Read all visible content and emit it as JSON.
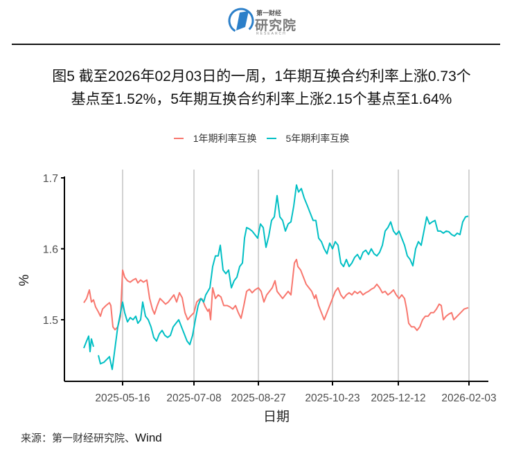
{
  "header": {
    "logo": {
      "small_text": "第一财经",
      "big_text": "研究院",
      "english_text": "RESEARCH",
      "emblem_color": "#2b7fc9"
    },
    "title_line1": "图5  截至2026年02月03日的一周，1年期互换合约利率上涨0.73个",
    "title_line2": "基点至1.52%，5年期互换合约利率上涨2.15个基点至1.64%"
  },
  "legend": {
    "items": [
      {
        "label": "1年期利率互换",
        "color": "#f8766d"
      },
      {
        "label": "5年期利率互换",
        "color": "#00bfc4"
      }
    ]
  },
  "footer": {
    "source_label": "来源：第一财经研究院、",
    "source_wind": "Wind"
  },
  "chart_data": {
    "type": "line",
    "title": "截至2026年02月03日的一周，1年期互换合约利率上涨0.73个基点至1.52%，5年期互换合约利率上涨2.15个基点至1.64%",
    "xlabel": "日期",
    "ylabel": "%",
    "x_ticks": [
      "2025-05-16",
      "2025-07-08",
      "2025-08-27",
      "2025-10-23",
      "2025-12-12",
      "2026-02-03"
    ],
    "y_ticks": [
      1.5,
      1.6,
      1.7
    ],
    "ylim": [
      1.41,
      1.7
    ],
    "grid": "vertical major gridlines at x ticks",
    "legend_position": "top",
    "series": [
      {
        "name": "1年期利率互换",
        "color": "#f8766d",
        "points": [
          [
            121,
            1.524
          ],
          [
            125,
            1.53
          ],
          [
            129,
            1.542
          ],
          [
            132,
            1.525
          ],
          [
            135,
            1.528
          ],
          [
            138,
            1.518
          ],
          [
            142,
            1.511
          ],
          [
            145,
            1.505
          ],
          [
            148,
            1.515
          ],
          [
            153,
            1.52
          ],
          [
            158,
            1.524
          ],
          [
            160,
            1.52
          ],
          [
            163,
            1.49
          ],
          [
            166,
            1.486
          ],
          [
            170,
            1.49
          ],
          [
            174,
            1.505
          ],
          [
            177,
            1.57
          ],
          [
            180,
            1.56
          ],
          [
            184,
            1.555
          ],
          [
            188,
            1.553
          ],
          [
            192,
            1.556
          ],
          [
            196,
            1.558
          ],
          [
            199,
            1.552
          ],
          [
            203,
            1.556
          ],
          [
            207,
            1.553
          ],
          [
            212,
            1.556
          ],
          [
            216,
            1.53
          ],
          [
            220,
            1.515
          ],
          [
            223,
            1.508
          ],
          [
            227,
            1.52
          ],
          [
            231,
            1.53
          ],
          [
            235,
            1.526
          ],
          [
            239,
            1.522
          ],
          [
            243,
            1.525
          ],
          [
            247,
            1.53
          ],
          [
            251,
            1.535
          ],
          [
            255,
            1.525
          ],
          [
            259,
            1.538
          ],
          [
            263,
            1.531
          ],
          [
            267,
            1.51
          ],
          [
            271,
            1.5
          ],
          [
            275,
            1.505
          ],
          [
            280,
            1.51
          ],
          [
            284,
            1.525
          ],
          [
            288,
            1.529
          ],
          [
            292,
            1.529
          ],
          [
            296,
            1.519
          ],
          [
            300,
            1.512
          ],
          [
            302,
            1.515
          ],
          [
            304,
            1.5
          ],
          [
            307,
            1.545
          ],
          [
            311,
            1.53
          ],
          [
            315,
            1.535
          ],
          [
            319,
            1.532
          ],
          [
            323,
            1.52
          ],
          [
            328,
            1.52
          ],
          [
            332,
            1.518
          ],
          [
            336,
            1.515
          ],
          [
            340,
            1.52
          ],
          [
            344,
            1.51
          ],
          [
            348,
            1.502
          ],
          [
            352,
            1.52
          ],
          [
            356,
            1.54
          ],
          [
            360,
            1.543
          ],
          [
            364,
            1.538
          ],
          [
            368,
            1.542
          ],
          [
            373,
            1.545
          ],
          [
            377,
            1.54
          ],
          [
            381,
            1.525
          ],
          [
            385,
            1.535
          ],
          [
            389,
            1.54
          ],
          [
            393,
            1.545
          ],
          [
            397,
            1.555
          ],
          [
            400,
            1.54
          ],
          [
            404,
            1.535
          ],
          [
            408,
            1.53
          ],
          [
            412,
            1.535
          ],
          [
            416,
            1.54
          ],
          [
            420,
            1.535
          ],
          [
            425,
            1.58
          ],
          [
            428,
            1.585
          ],
          [
            430,
            1.575
          ],
          [
            434,
            1.57
          ],
          [
            438,
            1.56
          ],
          [
            442,
            1.55
          ],
          [
            446,
            1.545
          ],
          [
            450,
            1.54
          ],
          [
            454,
            1.53
          ],
          [
            456,
            1.535
          ],
          [
            460,
            1.52
          ],
          [
            464,
            1.51
          ],
          [
            468,
            1.5
          ],
          [
            472,
            1.51
          ],
          [
            476,
            1.52
          ],
          [
            480,
            1.53
          ],
          [
            484,
            1.54
          ],
          [
            488,
            1.545
          ],
          [
            492,
            1.535
          ],
          [
            496,
            1.53
          ],
          [
            500,
            1.535
          ],
          [
            504,
            1.538
          ],
          [
            508,
            1.535
          ],
          [
            512,
            1.54
          ],
          [
            516,
            1.537
          ],
          [
            520,
            1.54
          ],
          [
            524,
            1.535
          ],
          [
            528,
            1.538
          ],
          [
            532,
            1.54
          ],
          [
            536,
            1.543
          ],
          [
            540,
            1.545
          ],
          [
            544,
            1.55
          ],
          [
            548,
            1.545
          ],
          [
            552,
            1.538
          ],
          [
            556,
            1.54
          ],
          [
            560,
            1.535
          ],
          [
            564,
            1.538
          ],
          [
            568,
            1.542
          ],
          [
            572,
            1.535
          ],
          [
            576,
            1.53
          ],
          [
            580,
            1.535
          ],
          [
            584,
            1.53
          ],
          [
            587,
            1.515
          ],
          [
            590,
            1.495
          ],
          [
            594,
            1.49
          ],
          [
            598,
            1.49
          ],
          [
            602,
            1.485
          ],
          [
            606,
            1.49
          ],
          [
            610,
            1.5
          ],
          [
            614,
            1.505
          ],
          [
            618,
            1.505
          ],
          [
            622,
            1.51
          ],
          [
            626,
            1.51
          ],
          [
            630,
            1.515
          ],
          [
            634,
            1.522
          ],
          [
            637,
            1.52
          ],
          [
            640,
            1.5
          ],
          [
            644,
            1.505
          ],
          [
            648,
            1.508
          ],
          [
            652,
            1.51
          ],
          [
            655,
            1.5
          ],
          [
            660,
            1.505
          ],
          [
            665,
            1.51
          ],
          [
            670,
            1.515
          ],
          [
            676,
            1.517
          ]
        ]
      },
      {
        "name": "5年期利率互换",
        "color": "#00bfc4",
        "segments_note": "small gap near 2025-04 start",
        "points": [
          [
            121,
            1.46
          ],
          [
            125,
            1.47
          ],
          [
            128,
            1.477
          ],
          [
            130,
            1.455
          ],
          [
            132,
            1.473
          ],
          [
            135,
            1.462
          ],
          null,
          [
            142,
            1.45
          ],
          [
            145,
            1.438
          ],
          [
            150,
            1.44
          ],
          [
            155,
            1.445
          ],
          [
            158,
            1.448
          ],
          [
            162,
            1.43
          ],
          [
            166,
            1.46
          ],
          [
            170,
            1.49
          ],
          [
            174,
            1.51
          ],
          [
            177,
            1.525
          ],
          [
            180,
            1.51
          ],
          [
            184,
            1.497
          ],
          [
            188,
            1.503
          ],
          [
            192,
            1.5
          ],
          [
            196,
            1.505
          ],
          [
            199,
            1.495
          ],
          [
            203,
            1.5
          ],
          [
            206,
            1.525
          ],
          [
            210,
            1.505
          ],
          [
            214,
            1.5
          ],
          [
            218,
            1.49
          ],
          [
            222,
            1.475
          ],
          [
            226,
            1.47
          ],
          [
            230,
            1.48
          ],
          [
            234,
            1.485
          ],
          [
            238,
            1.478
          ],
          [
            242,
            1.475
          ],
          [
            246,
            1.478
          ],
          [
            250,
            1.49
          ],
          [
            254,
            1.495
          ],
          [
            258,
            1.5
          ],
          [
            262,
            1.49
          ],
          [
            266,
            1.48
          ],
          [
            270,
            1.47
          ],
          [
            274,
            1.465
          ],
          [
            278,
            1.478
          ],
          [
            282,
            1.5
          ],
          [
            286,
            1.52
          ],
          [
            290,
            1.53
          ],
          [
            294,
            1.525
          ],
          [
            297,
            1.535
          ],
          [
            300,
            1.54
          ],
          [
            303,
            1.545
          ],
          [
            307,
            1.575
          ],
          [
            311,
            1.59
          ],
          [
            315,
            1.59
          ],
          [
            318,
            1.605
          ],
          [
            322,
            1.57
          ],
          [
            326,
            1.565
          ],
          [
            330,
            1.57
          ],
          [
            334,
            1.545
          ],
          [
            338,
            1.555
          ],
          [
            342,
            1.56
          ],
          [
            346,
            1.575
          ],
          [
            350,
            1.58
          ],
          [
            353,
            1.615
          ],
          [
            356,
            1.63
          ],
          [
            360,
            1.628
          ],
          [
            364,
            1.625
          ],
          [
            368,
            1.62
          ],
          [
            372,
            1.615
          ],
          [
            376,
            1.635
          ],
          [
            380,
            1.63
          ],
          [
            384,
            1.602
          ],
          [
            388,
            1.618
          ],
          [
            392,
            1.64
          ],
          [
            396,
            1.645
          ],
          [
            400,
            1.675
          ],
          [
            404,
            1.645
          ],
          [
            408,
            1.64
          ],
          [
            412,
            1.625
          ],
          [
            416,
            1.635
          ],
          [
            420,
            1.638
          ],
          [
            424,
            1.66
          ],
          [
            428,
            1.69
          ],
          [
            431,
            1.68
          ],
          [
            435,
            1.685
          ],
          [
            439,
            1.672
          ],
          [
            444,
            1.66
          ],
          [
            448,
            1.65
          ],
          [
            452,
            1.64
          ],
          [
            456,
            1.64
          ],
          [
            460,
            1.615
          ],
          [
            464,
            1.61
          ],
          [
            468,
            1.6
          ],
          [
            472,
            1.593
          ],
          [
            476,
            1.608
          ],
          [
            480,
            1.6
          ],
          [
            484,
            1.61
          ],
          [
            488,
            1.605
          ],
          [
            492,
            1.58
          ],
          [
            496,
            1.575
          ],
          [
            500,
            1.585
          ],
          [
            504,
            1.575
          ],
          [
            508,
            1.58
          ],
          [
            512,
            1.588
          ],
          [
            516,
            1.592
          ],
          [
            520,
            1.585
          ],
          [
            524,
            1.595
          ],
          [
            528,
            1.598
          ],
          [
            532,
            1.592
          ],
          [
            536,
            1.6
          ],
          [
            540,
            1.593
          ],
          [
            544,
            1.59
          ],
          [
            548,
            1.595
          ],
          [
            552,
            1.605
          ],
          [
            556,
            1.625
          ],
          [
            560,
            1.63
          ],
          [
            564,
            1.638
          ],
          [
            568,
            1.625
          ],
          [
            572,
            1.62
          ],
          [
            576,
            1.625
          ],
          [
            580,
            1.615
          ],
          [
            584,
            1.605
          ],
          [
            588,
            1.59
          ],
          [
            592,
            1.585
          ],
          [
            596,
            1.576
          ],
          [
            600,
            1.6
          ],
          [
            604,
            1.61
          ],
          [
            608,
            1.605
          ],
          [
            612,
            1.625
          ],
          [
            616,
            1.645
          ],
          [
            620,
            1.635
          ],
          [
            624,
            1.638
          ],
          [
            628,
            1.64
          ],
          [
            632,
            1.625
          ],
          [
            636,
            1.625
          ],
          [
            640,
            1.622
          ],
          [
            644,
            1.625
          ],
          [
            648,
            1.624
          ],
          [
            652,
            1.62
          ],
          [
            656,
            1.618
          ],
          [
            660,
            1.622
          ],
          [
            664,
            1.62
          ],
          [
            668,
            1.638
          ],
          [
            672,
            1.645
          ],
          [
            676,
            1.646
          ]
        ]
      }
    ]
  }
}
